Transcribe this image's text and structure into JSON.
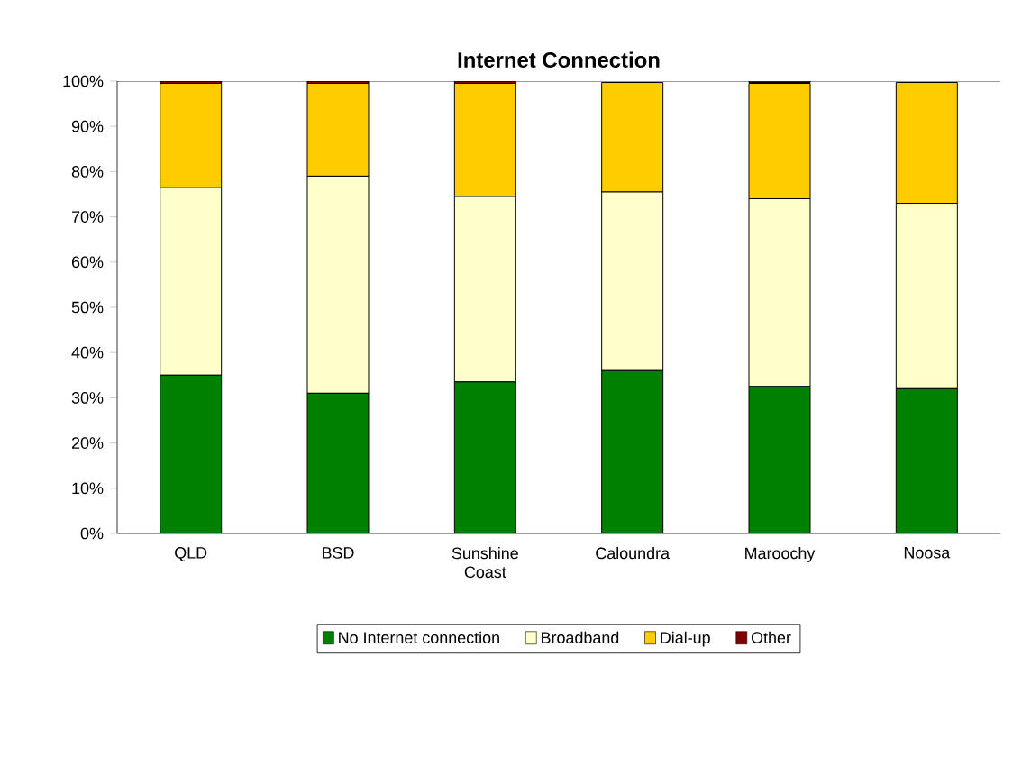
{
  "chart_data": {
    "type": "bar",
    "stacked": true,
    "title": "**Internet Connection**",
    "categories": [
      "QLD",
      "BSD",
      "Sunshine Coast",
      "Caloundra",
      "Maroochy",
      "Noosa"
    ],
    "series": [
      {
        "name": "No Internet connection",
        "color": "#008000",
        "values": [
          35,
          31,
          33.5,
          36,
          32.5,
          32
        ]
      },
      {
        "name": "Broadband",
        "color": "#ffffcc",
        "values": [
          41.5,
          48,
          41,
          39.5,
          41.5,
          41
        ]
      },
      {
        "name": "Dial-up",
        "color": "#ffcc00",
        "values": [
          23,
          20.5,
          25,
          24.2,
          25.5,
          26.7
        ]
      },
      {
        "name": "Other",
        "color": "#800000",
        "values": [
          0.5,
          0.5,
          0.5,
          null,
          0.5,
          null
        ]
      }
    ],
    "ylim": [
      0,
      100
    ],
    "yticks": [
      {
        "value": 0,
        "label": "0%"
      },
      {
        "value": 10,
        "label": "10%"
      },
      {
        "value": 20,
        "label": "20%"
      },
      {
        "value": 30,
        "label": "30%"
      },
      {
        "value": 40,
        "label": "40%"
      },
      {
        "value": 50,
        "label": "50%"
      },
      {
        "value": 60,
        "label": "60%"
      },
      {
        "value": 70,
        "label": "70%"
      },
      {
        "value": 80,
        "label": "80%"
      },
      {
        "value": 90,
        "label": "90%"
      },
      {
        "value": 100,
        "label": "100%"
      }
    ],
    "grid": false,
    "legend": "bottom"
  }
}
